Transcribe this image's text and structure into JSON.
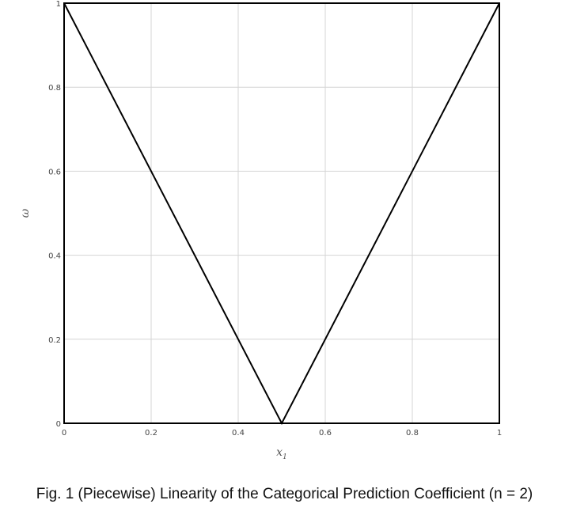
{
  "chart_data": {
    "type": "line",
    "title": "",
    "xlabel": "x",
    "xlabel_subscript": "1",
    "ylabel": "ω",
    "xlim": [
      0,
      1
    ],
    "ylim": [
      0,
      1
    ],
    "xticks": [
      0,
      0.2,
      0.4,
      0.6,
      0.8,
      1
    ],
    "xtick_labels": [
      "0",
      "0.2",
      "0.4",
      "0.6",
      "0.8",
      "1"
    ],
    "yticks": [
      0,
      0.2,
      0.4,
      0.6,
      0.8,
      1
    ],
    "ytick_labels": [
      "0",
      "0.2",
      "0.4",
      "0.6",
      "0.8",
      "1"
    ],
    "grid": true,
    "series": [
      {
        "x": [
          0,
          0.5,
          1
        ],
        "y": [
          1,
          0,
          1
        ],
        "color": "#000000"
      }
    ]
  },
  "caption": "Fig. 1 (Piecewise) Linearity of the Categorical Prediction Coefficient (n = 2)"
}
